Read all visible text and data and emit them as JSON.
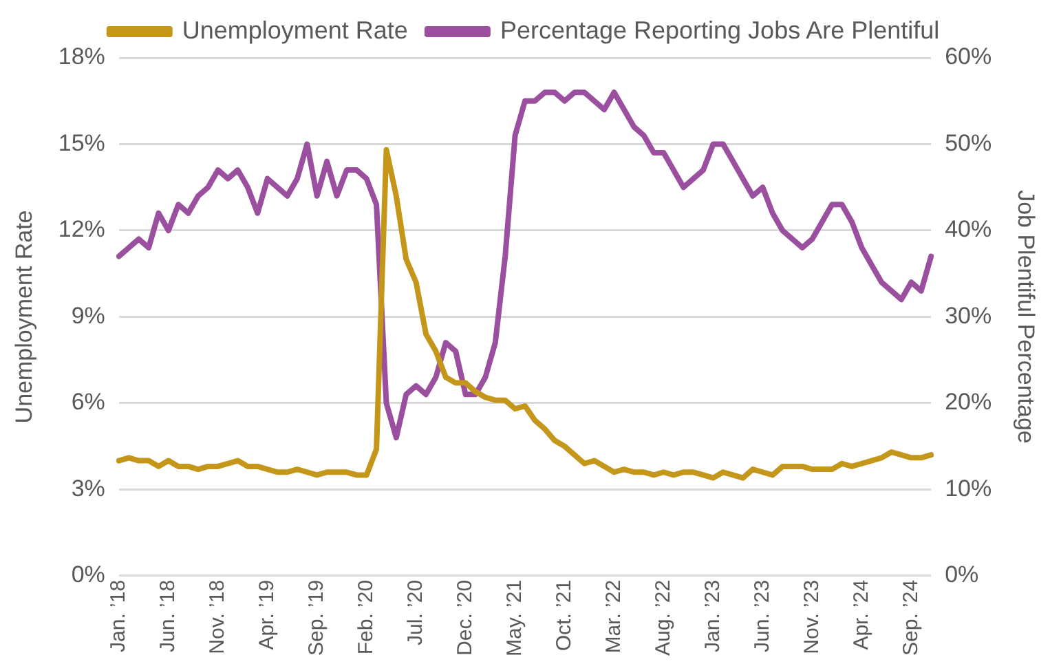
{
  "chart_data": {
    "type": "line",
    "categories": [
      "Jan. ’18",
      null,
      null,
      null,
      null,
      "Jun. ’18",
      null,
      null,
      null,
      null,
      "Nov. ’18",
      null,
      null,
      null,
      null,
      "Apr. ’19",
      null,
      null,
      null,
      null,
      "Sep. ’19",
      null,
      null,
      null,
      null,
      "Feb. ’20",
      null,
      null,
      null,
      null,
      "Jul. ’20",
      null,
      null,
      null,
      null,
      "Dec. ’20",
      null,
      null,
      null,
      null,
      "May. ’21",
      null,
      null,
      null,
      null,
      "Oct. ’21",
      null,
      null,
      null,
      null,
      "Mar. ’22",
      null,
      null,
      null,
      null,
      "Aug. ’22",
      null,
      null,
      null,
      null,
      "Jan. ’23",
      null,
      null,
      null,
      null,
      "Jun. ’23",
      null,
      null,
      null,
      null,
      "Nov. ’23",
      null,
      null,
      null,
      null,
      "Apr. ’24",
      null,
      null,
      null,
      null,
      "Sep. ’24",
      null,
      null
    ],
    "series": [
      {
        "name": "Unemployment Rate",
        "color": "#c4961a",
        "values": [
          4.0,
          4.1,
          4.0,
          4.0,
          3.8,
          4.0,
          3.8,
          3.8,
          3.7,
          3.8,
          3.8,
          3.9,
          4.0,
          3.8,
          3.8,
          3.7,
          3.6,
          3.6,
          3.7,
          3.6,
          3.5,
          3.6,
          3.6,
          3.6,
          3.5,
          3.5,
          4.4,
          14.8,
          13.2,
          11.0,
          10.2,
          8.4,
          7.8,
          6.9,
          6.7,
          6.7,
          6.4,
          6.2,
          6.1,
          6.1,
          5.8,
          5.9,
          5.4,
          5.1,
          4.7,
          4.5,
          4.2,
          3.9,
          4.0,
          3.8,
          3.6,
          3.7,
          3.6,
          3.6,
          3.5,
          3.6,
          3.5,
          3.6,
          3.6,
          3.5,
          3.4,
          3.6,
          3.5,
          3.4,
          3.7,
          3.6,
          3.5,
          3.8,
          3.8,
          3.8,
          3.7,
          3.7,
          3.7,
          3.9,
          3.8,
          3.9,
          4.0,
          4.1,
          4.3,
          4.2,
          4.1,
          4.1,
          4.2
        ]
      },
      {
        "name": "Percentage Reporting Jobs Are Plentiful",
        "color": "#9b4f9f",
        "axis": "y2",
        "values": [
          37,
          38,
          39,
          38,
          42,
          40,
          43,
          42,
          44,
          45,
          47,
          46,
          47,
          45,
          42,
          46,
          45,
          44,
          46,
          50,
          44,
          48,
          44,
          47,
          47,
          46,
          43,
          20,
          16,
          21,
          22,
          21,
          23,
          27,
          26,
          21,
          21,
          23,
          27,
          37,
          51,
          55,
          55,
          56,
          56,
          55,
          56,
          56,
          55,
          54,
          56,
          54,
          52,
          51,
          49,
          49,
          47,
          45,
          46,
          47,
          50,
          50,
          48,
          46,
          44,
          45,
          42,
          40,
          39,
          38,
          39,
          41,
          43,
          43,
          41,
          38,
          36,
          34,
          33,
          32,
          34,
          33,
          37
        ]
      }
    ],
    "ylabel": "Unemployment Rate",
    "y2label": "Job Plentiful Percentage",
    "ylim": [
      0,
      18
    ],
    "yticks": [
      {
        "value": 0,
        "label": "0%"
      },
      {
        "value": 3,
        "label": "3%"
      },
      {
        "value": 6,
        "label": "6%"
      },
      {
        "value": 9,
        "label": "9%"
      },
      {
        "value": 12,
        "label": "12%"
      },
      {
        "value": 15,
        "label": "15%"
      },
      {
        "value": 18,
        "label": "18%"
      }
    ],
    "y2lim": [
      0,
      60
    ],
    "y2ticks": [
      {
        "value": 0,
        "label": "0%"
      },
      {
        "value": 10,
        "label": "10%"
      },
      {
        "value": 20,
        "label": "20%"
      },
      {
        "value": 30,
        "label": "30%"
      },
      {
        "value": 40,
        "label": "40%"
      },
      {
        "value": 50,
        "label": "50%"
      },
      {
        "value": 60,
        "label": "60%"
      }
    ],
    "grid": "y",
    "legend": "top",
    "marker": "none",
    "line_style": "solid"
  }
}
